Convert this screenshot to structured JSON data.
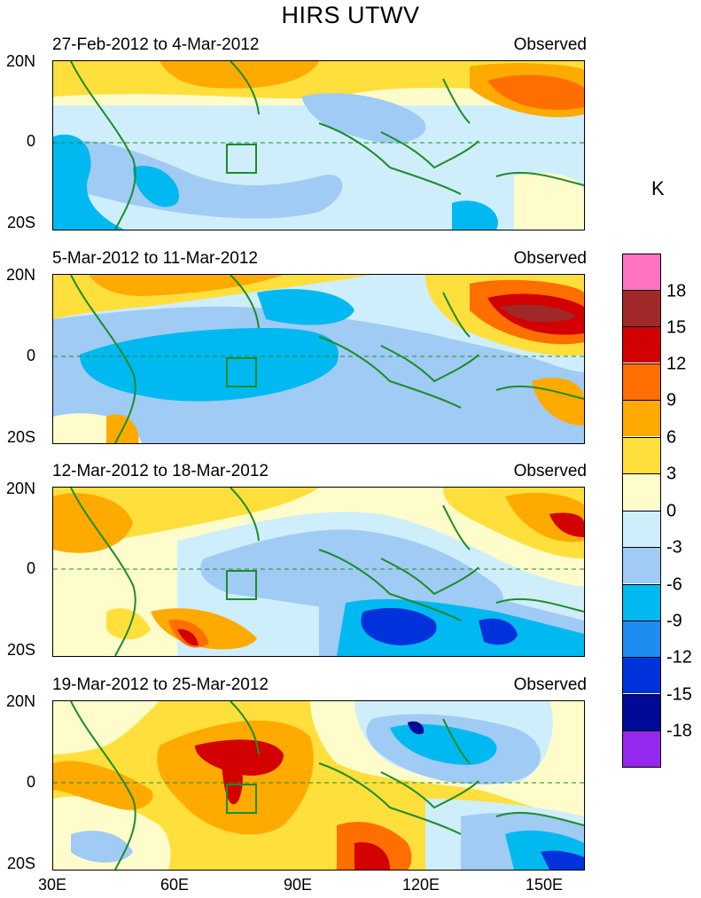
{
  "title": "HIRS UTWV",
  "panels": [
    {
      "date_range": "27-Feb-2012 to 4-Mar-2012",
      "tag": "Observed"
    },
    {
      "date_range": "5-Mar-2012 to 11-Mar-2012",
      "tag": "Observed"
    },
    {
      "date_range": "12-Mar-2012 to 18-Mar-2012",
      "tag": "Observed"
    },
    {
      "date_range": "19-Mar-2012 to 25-Mar-2012",
      "tag": "Observed"
    }
  ],
  "y_axis_labels": [
    "20N",
    "0",
    "20S"
  ],
  "x_axis_labels": [
    "30E",
    "60E",
    "90E",
    "120E",
    "150E"
  ],
  "colorbar": {
    "unit": "K",
    "tick_labels": [
      "18",
      "15",
      "12",
      "9",
      "6",
      "3",
      "0",
      "-3",
      "-6",
      "-9",
      "-12",
      "-15",
      "-18"
    ],
    "colors": [
      "#ff73c0",
      "#a02828",
      "#d20000",
      "#ff6e00",
      "#ffaa00",
      "#ffdf3c",
      "#fffccc",
      "#cfeefb",
      "#a0cbf5",
      "#00b9f0",
      "#1e8cf0",
      "#0032dc",
      "#000a96",
      "#9628f0"
    ]
  },
  "map": {
    "lon_range": [
      30,
      160
    ],
    "lat_range": [
      -20,
      20
    ],
    "coastline_color": "#1e8c28",
    "equator_style": "dashed"
  }
}
